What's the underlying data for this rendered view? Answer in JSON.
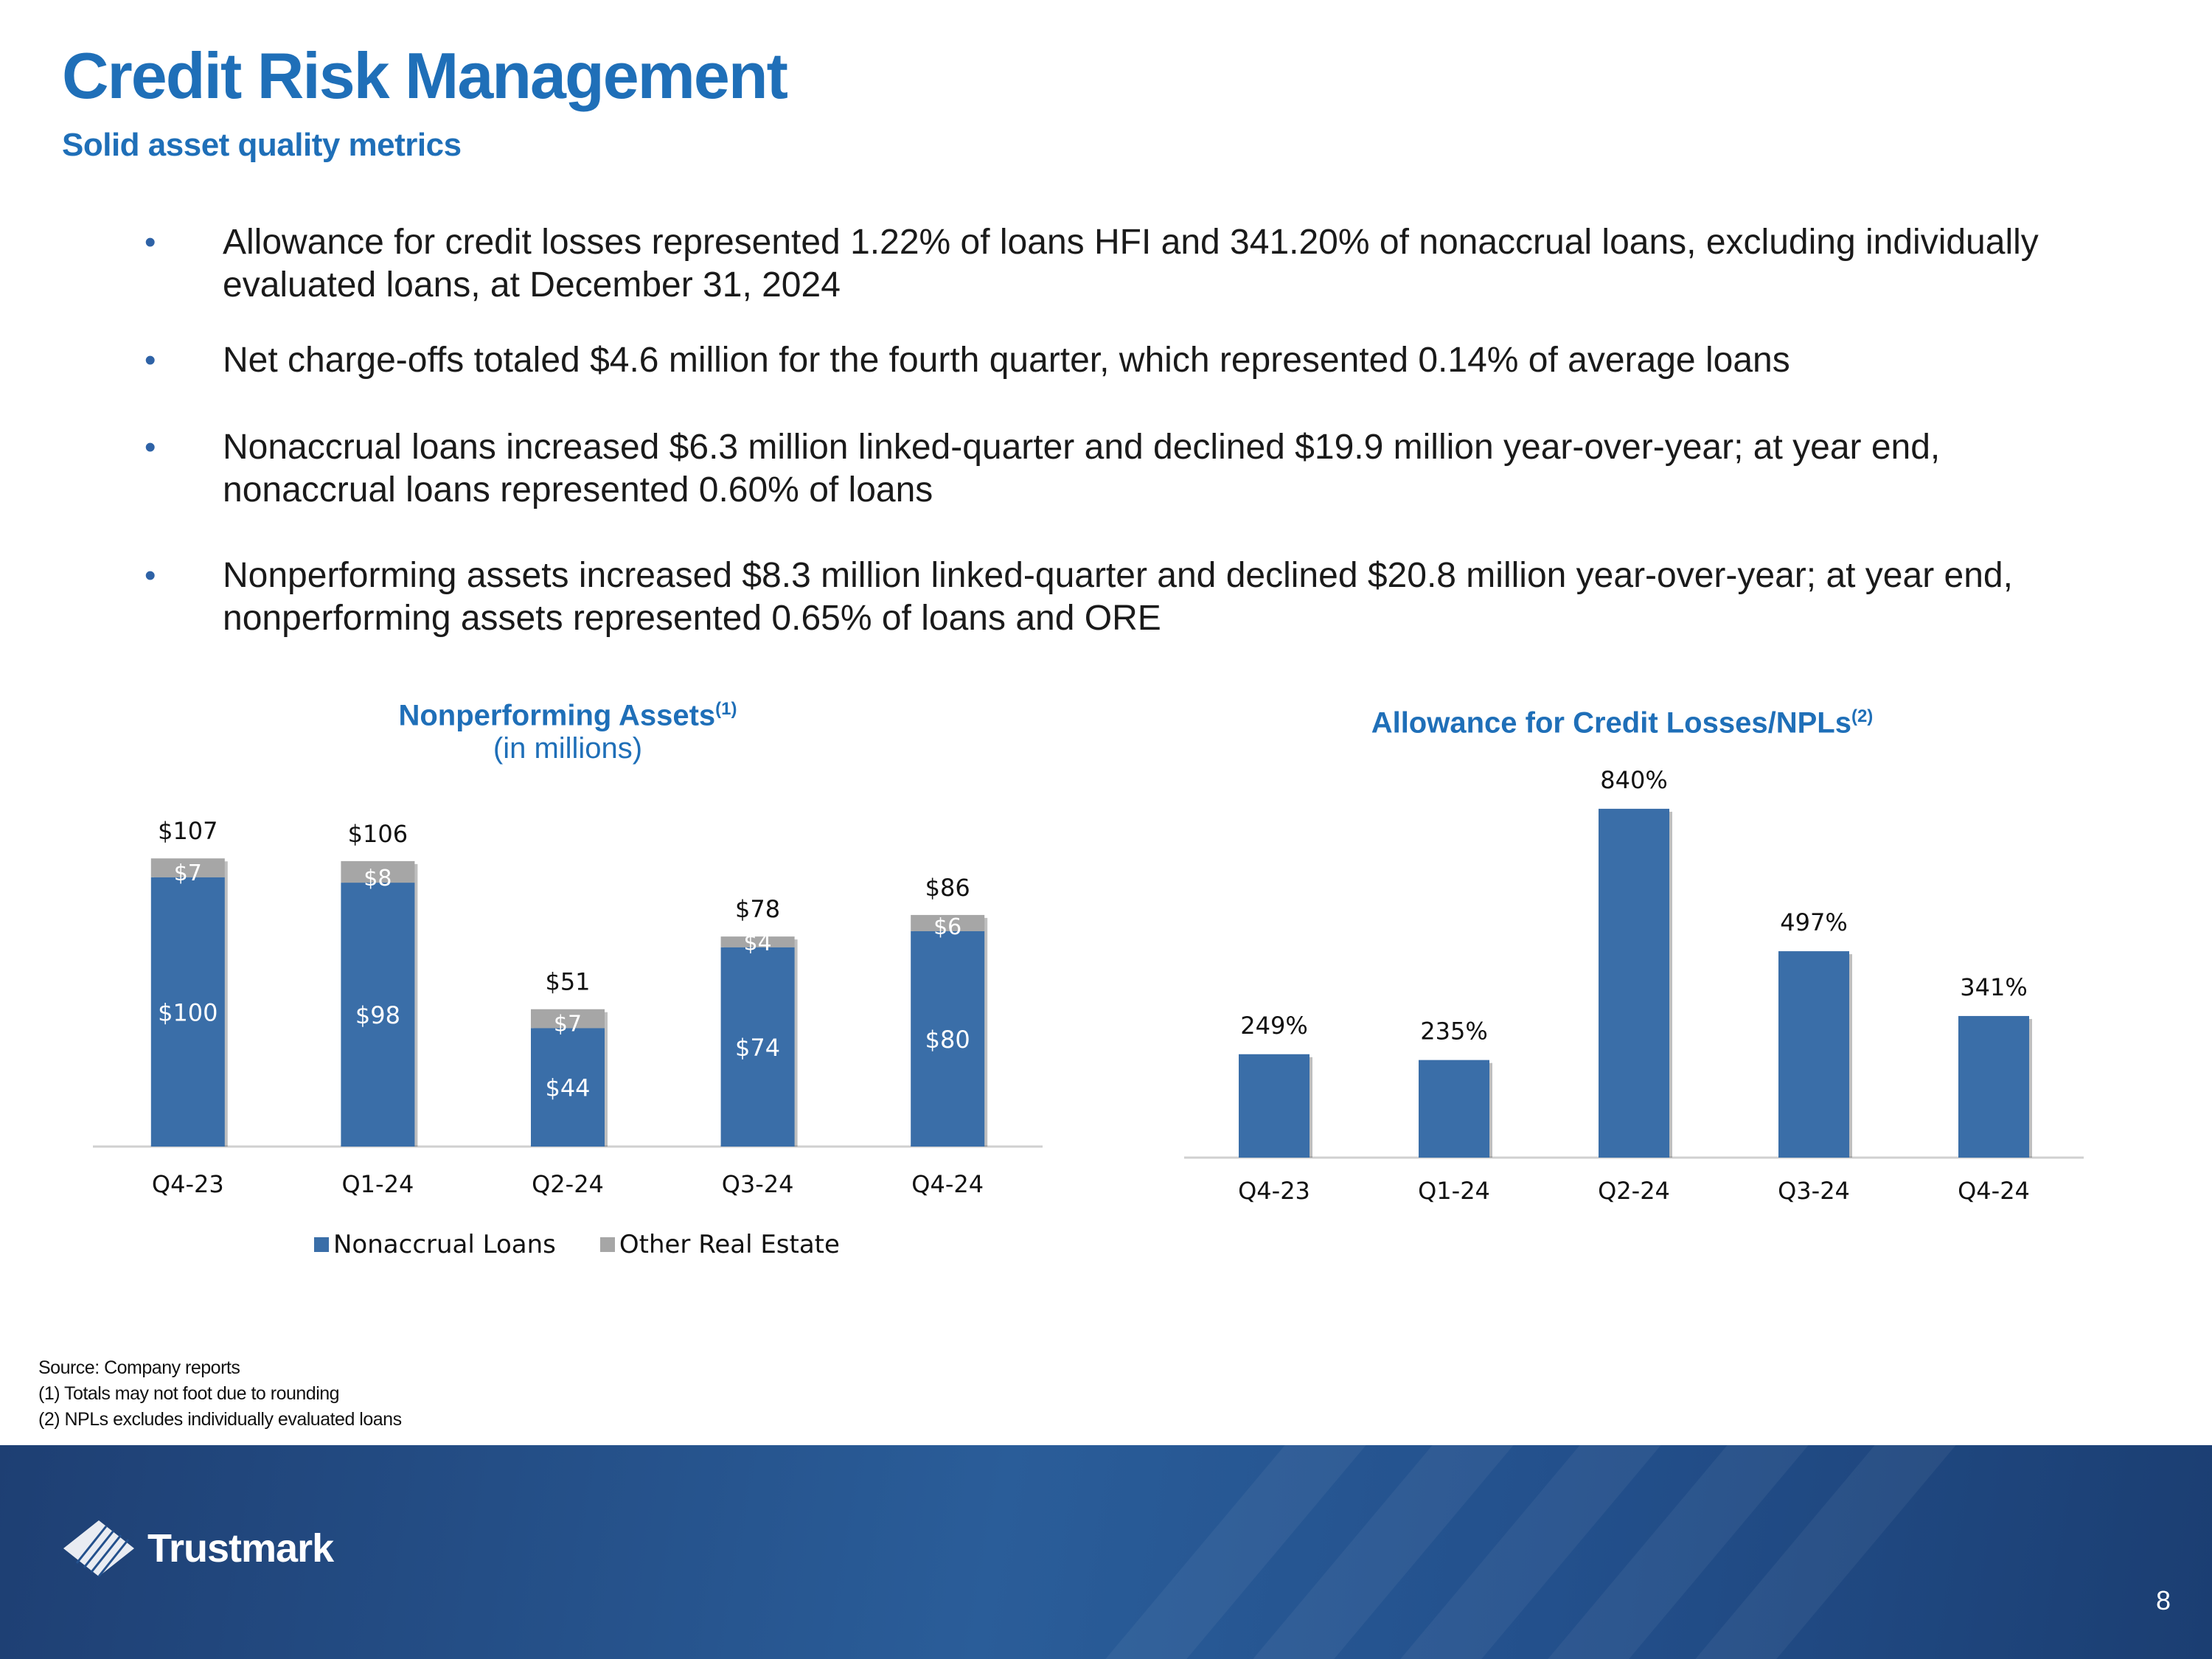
{
  "title": "Credit Risk Management",
  "subtitle": "Solid asset quality metrics",
  "bullets": [
    "Allowance for credit losses represented 1.22% of loans HFI and 341.20% of nonaccrual loans, excluding individually evaluated loans, at December 31, 2024",
    "Net charge-offs totaled $4.6 million for the fourth quarter, which represented 0.14% of average loans",
    "Nonaccrual loans increased $6.3 million linked-quarter and declined $19.9 million year-over-year; at year end, nonaccrual loans represented 0.60% of loans",
    "Nonperforming assets increased $8.3 million linked-quarter and declined $20.8 million year-over-year; at year end, nonperforming assets represented 0.65% of loans and ORE"
  ],
  "chart_data": [
    {
      "type": "bar",
      "stacked": true,
      "title": "Nonperforming Assets",
      "title_sup": "(1)",
      "subtitle": "(in millions)",
      "categories": [
        "Q4-23",
        "Q1-24",
        "Q2-24",
        "Q3-24",
        "Q4-24"
      ],
      "series": [
        {
          "name": "Nonaccrual Loans",
          "values": [
            100,
            98,
            44,
            74,
            80
          ],
          "labels": [
            "$100",
            "$98",
            "$44",
            "$74",
            "$80"
          ],
          "color": "#3a6ea8"
        },
        {
          "name": "Other Real Estate",
          "values": [
            7,
            8,
            7,
            4,
            6
          ],
          "labels": [
            "$7",
            "$8",
            "$7",
            "$4",
            "$6"
          ],
          "color": "#a6a6a6"
        }
      ],
      "totals": [
        107,
        106,
        51,
        78,
        86
      ],
      "total_labels": [
        "$107",
        "$106",
        "$51",
        "$78",
        "$86"
      ],
      "ylim": [
        0,
        115
      ],
      "legend": "bottom"
    },
    {
      "type": "bar",
      "title": "Allowance for Credit Losses/NPLs",
      "title_sup": "(2)",
      "categories": [
        "Q4-23",
        "Q1-24",
        "Q2-24",
        "Q3-24",
        "Q4-24"
      ],
      "values": [
        249,
        235,
        840,
        497,
        341
      ],
      "labels": [
        "249%",
        "235%",
        "840%",
        "497%",
        "341%"
      ],
      "ylim": [
        0,
        870
      ],
      "color": "#3a6ea8"
    }
  ],
  "notes": [
    "Source: Company reports",
    "(1) Totals may not foot due to rounding",
    "(2) NPLs excludes individually evaluated loans"
  ],
  "logo_text": "Trustmark",
  "page_number": "8"
}
